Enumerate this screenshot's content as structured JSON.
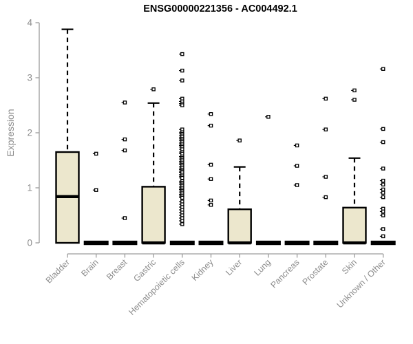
{
  "chart_data": {
    "type": "boxplot",
    "title": "ENSG00000221356 - AC004492.1",
    "ylabel": "Expression",
    "xlabel": "",
    "ylim": [
      0,
      4
    ],
    "yticks": [
      0,
      1,
      2,
      3,
      4
    ],
    "grid": false,
    "legend": "none",
    "colors": {
      "box_fill": "#ece7cd",
      "box_stroke": "#000000",
      "axis": "#9a9a9a",
      "tick_label": "#8d8d8d",
      "title": "#000000",
      "background": "#ffffff"
    },
    "categories": [
      "Bladder",
      "Brain",
      "Breast",
      "Gastric",
      "Hematopoietic cells",
      "Kidney",
      "Liver",
      "Lung",
      "Pancreas",
      "Prostate",
      "Skin",
      "Unknown / Other"
    ],
    "boxes": [
      {
        "category": "Bladder",
        "min": 0,
        "q1": 0,
        "median": 0.84,
        "q3": 1.65,
        "max": 3.88,
        "outliers": []
      },
      {
        "category": "Brain",
        "min": 0,
        "q1": 0,
        "median": 0,
        "q3": 0,
        "max": 0,
        "outliers": [
          1.62,
          0.96
        ]
      },
      {
        "category": "Breast",
        "min": 0,
        "q1": 0,
        "median": 0,
        "q3": 0,
        "max": 0,
        "outliers": [
          2.55,
          1.88,
          1.68,
          0.45
        ]
      },
      {
        "category": "Gastric",
        "min": 0,
        "q1": 0,
        "median": 0,
        "q3": 1.02,
        "max": 2.54,
        "outliers": [
          2.79
        ]
      },
      {
        "category": "Hematopoietic cells",
        "min": 0,
        "q1": 0,
        "median": 0,
        "q3": 0,
        "max": 0,
        "outliers": [
          3.43,
          3.13,
          2.95,
          2.62,
          2.57,
          2.53,
          2.5,
          2.06,
          2.01,
          1.98,
          1.95,
          1.92,
          1.89,
          1.86,
          1.83,
          1.8,
          1.77,
          1.74,
          1.7,
          1.65,
          1.62,
          1.57,
          1.54,
          1.51,
          1.48,
          1.45,
          1.42,
          1.39,
          1.36,
          1.33,
          1.3,
          1.28,
          1.24,
          1.21,
          1.18,
          1.12,
          1.09,
          1.06,
          1.03,
          1.0,
          0.97,
          0.94,
          0.91,
          0.88,
          0.85,
          0.82,
          0.75,
          0.7,
          0.65,
          0.6,
          0.55,
          0.5,
          0.45,
          0.4,
          0.34
        ]
      },
      {
        "category": "Kidney",
        "min": 0,
        "q1": 0,
        "median": 0,
        "q3": 0,
        "max": 0,
        "outliers": [
          2.34,
          2.13,
          1.42,
          1.16,
          0.77,
          0.69
        ]
      },
      {
        "category": "Liver",
        "min": 0,
        "q1": 0,
        "median": 0,
        "q3": 0.61,
        "max": 1.38,
        "outliers": [
          1.86
        ]
      },
      {
        "category": "Lung",
        "min": 0,
        "q1": 0,
        "median": 0,
        "q3": 0,
        "max": 0,
        "outliers": [
          2.29
        ]
      },
      {
        "category": "Pancreas",
        "min": 0,
        "q1": 0,
        "median": 0,
        "q3": 0,
        "max": 0,
        "outliers": [
          1.77,
          1.4,
          1.05
        ]
      },
      {
        "category": "Prostate",
        "min": 0,
        "q1": 0,
        "median": 0,
        "q3": 0,
        "max": 0,
        "outliers": [
          2.62,
          2.06,
          1.2,
          0.83
        ]
      },
      {
        "category": "Skin",
        "min": 0,
        "q1": 0,
        "median": 0,
        "q3": 0.64,
        "max": 1.54,
        "outliers": [
          2.77,
          2.6
        ]
      },
      {
        "category": "Unknown / Other",
        "min": 0,
        "q1": 0,
        "median": 0,
        "q3": 0,
        "max": 0,
        "outliers": [
          3.16,
          2.07,
          1.83,
          1.35,
          1.13,
          1.06,
          0.97,
          0.91,
          0.83,
          0.62,
          0.57,
          0.5,
          0.25,
          0.12
        ]
      }
    ]
  }
}
